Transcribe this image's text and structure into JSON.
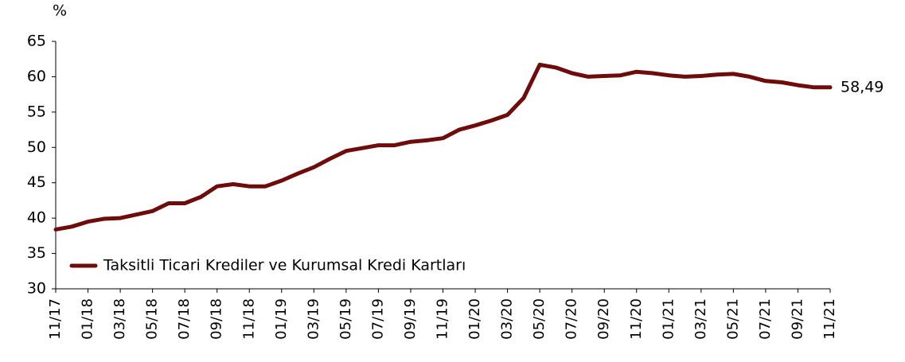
{
  "chart_data": {
    "type": "line",
    "y_label": "%",
    "categories": [
      "11/17",
      null,
      "01/18",
      null,
      "03/18",
      null,
      "05/18",
      null,
      "07/18",
      null,
      "09/18",
      null,
      "11/18",
      null,
      "01/19",
      null,
      "03/19",
      null,
      "05/19",
      null,
      "07/19",
      null,
      "09/19",
      null,
      "11/19",
      null,
      "01/20",
      null,
      "03/20",
      null,
      "05/20",
      null,
      "07/20",
      null,
      "09/20",
      null,
      "11/20",
      null,
      "01/21",
      null,
      "03/21",
      null,
      "05/21",
      null,
      "07/21",
      null,
      "09/21",
      null,
      "11/21"
    ],
    "series": [
      {
        "name": "Taksitli Ticari Krediler ve Kurumsal Kredi Kartları",
        "color": "#6e0b0b",
        "values": [
          38.4,
          38.8,
          39.5,
          39.9,
          40.0,
          40.5,
          41.0,
          42.1,
          42.1,
          43.0,
          44.5,
          44.8,
          44.5,
          44.5,
          45.3,
          46.3,
          47.2,
          48.4,
          49.5,
          49.9,
          50.3,
          50.3,
          50.8,
          51.0,
          51.3,
          52.5,
          53.1,
          53.8,
          54.6,
          57.0,
          61.7,
          61.3,
          60.5,
          60.0,
          60.1,
          60.2,
          60.7,
          60.5,
          60.2,
          60.0,
          60.1,
          60.3,
          60.4,
          60.0,
          59.4,
          59.2,
          58.8,
          58.5,
          58.49
        ],
        "value_labels": [
          null,
          null,
          null,
          null,
          null,
          null,
          null,
          null,
          null,
          null,
          null,
          null,
          null,
          null,
          null,
          null,
          null,
          null,
          null,
          null,
          null,
          null,
          null,
          null,
          null,
          null,
          null,
          null,
          null,
          null,
          null,
          null,
          null,
          null,
          null,
          null,
          null,
          null,
          null,
          null,
          null,
          null,
          null,
          null,
          null,
          null,
          null,
          null,
          "58,49"
        ]
      }
    ],
    "ylim": [
      30,
      65
    ],
    "yticks": [
      30,
      35,
      40,
      45,
      50,
      55,
      60,
      65
    ],
    "legend": "lower left"
  }
}
